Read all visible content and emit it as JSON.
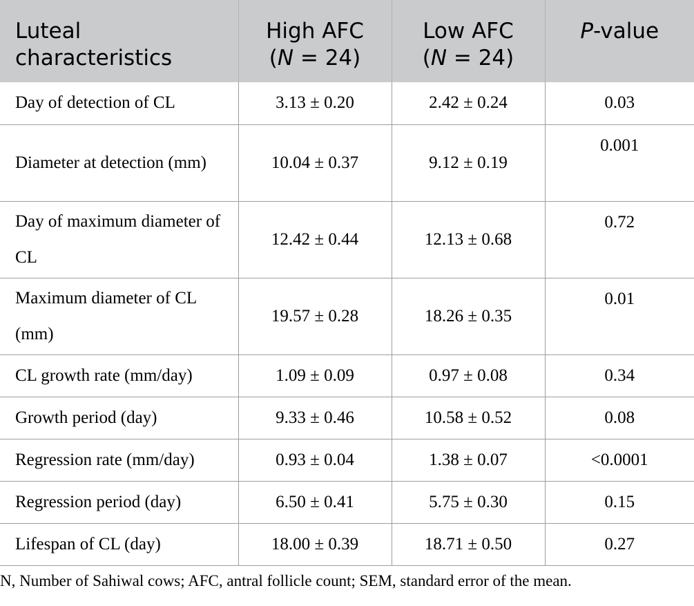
{
  "header": {
    "col1_line1": "Luteal",
    "col1_line2": "characteristics",
    "col2_line1": "High AFC",
    "col2_n_italic": "N",
    "col2_n_value": " = 24)",
    "col3_line1": "Low AFC",
    "col3_n_italic": "N",
    "col3_n_value": " = 24)",
    "col4_italic": "P",
    "col4_rest": "-value"
  },
  "rows": [
    {
      "label": "Day of detection of CL",
      "high": "3.13 ± 0.20",
      "low": "2.42 ± 0.24",
      "p": "0.03"
    },
    {
      "label": "Diameter at detection (mm)",
      "high": "10.04 ± 0.37",
      "low": "9.12 ± 0.19",
      "p": "0.001"
    },
    {
      "label": "Day of maximum diameter of CL",
      "high": "12.42 ± 0.44",
      "low": "12.13 ± 0.68",
      "p": "0.72"
    },
    {
      "label": "Maximum diameter of CL (mm)",
      "high": "19.57 ± 0.28",
      "low": "18.26 ± 0.35",
      "p": "0.01"
    },
    {
      "label": "CL growth rate (mm/day)",
      "high": "1.09 ± 0.09",
      "low": "0.97 ± 0.08",
      "p": "0.34"
    },
    {
      "label": "Growth period (day)",
      "high": "9.33 ± 0.46",
      "low": "10.58 ± 0.52",
      "p": "0.08"
    },
    {
      "label": "Regression rate (mm/day)",
      "high": "0.93 ± 0.04",
      "low": "1.38 ± 0.07",
      "p": "<0.0001"
    },
    {
      "label": "Regression period (day)",
      "high": "6.50 ± 0.41",
      "low": "5.75 ± 0.30",
      "p": "0.15"
    },
    {
      "label": "Lifespan of CL (day)",
      "high": "18.00 ± 0.39",
      "low": "18.71 ± 0.50",
      "p": "0.27"
    }
  ],
  "footnote": "N, Number of Sahiwal cows; AFC, antral follicle count; SEM, standard error of the mean."
}
